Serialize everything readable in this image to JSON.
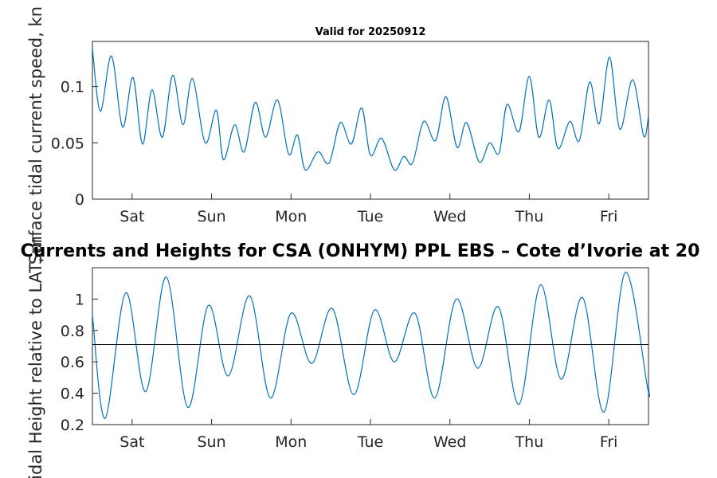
{
  "chart_data": [
    {
      "type": "line",
      "title": "Valid for 20250912",
      "ylabel": "Surface tidal current speed, kn",
      "xlim": [
        0,
        7
      ],
      "ylim": [
        0,
        0.14
      ],
      "x_ticks": [
        0.5,
        1.5,
        2.5,
        3.5,
        4.5,
        5.5,
        6.5
      ],
      "x_tick_labels": [
        "Sat",
        "Sun",
        "Mon",
        "Tue",
        "Wed",
        "Thu",
        "Fri"
      ],
      "y_ticks": [
        0,
        0.05,
        0.1
      ],
      "y_tick_labels": [
        "0",
        "0.05",
        "0.1"
      ],
      "grid": false,
      "series": [
        {
          "color": "#0072BD",
          "x": [
            0,
            0.1,
            0.24,
            0.38,
            0.51,
            0.63,
            0.75,
            0.88,
            1.01,
            1.14,
            1.26,
            1.42,
            1.56,
            1.65,
            1.79,
            1.91,
            2.05,
            2.18,
            2.33,
            2.47,
            2.58,
            2.68,
            2.84,
            2.98,
            3.12,
            3.26,
            3.39,
            3.5,
            3.64,
            3.8,
            3.92,
            4.03,
            4.17,
            4.32,
            4.45,
            4.59,
            4.71,
            4.87,
            5.0,
            5.12,
            5.22,
            5.37,
            5.5,
            5.62,
            5.75,
            5.86,
            6.01,
            6.13,
            6.26,
            6.38,
            6.51,
            6.64,
            6.8,
            6.94,
            7.0
          ],
          "y": [
            0.134,
            0.078,
            0.127,
            0.064,
            0.108,
            0.049,
            0.097,
            0.055,
            0.11,
            0.066,
            0.107,
            0.05,
            0.079,
            0.035,
            0.066,
            0.042,
            0.086,
            0.055,
            0.088,
            0.04,
            0.057,
            0.026,
            0.042,
            0.032,
            0.068,
            0.049,
            0.081,
            0.039,
            0.054,
            0.026,
            0.038,
            0.032,
            0.069,
            0.052,
            0.091,
            0.046,
            0.068,
            0.033,
            0.05,
            0.041,
            0.084,
            0.06,
            0.109,
            0.055,
            0.088,
            0.045,
            0.069,
            0.052,
            0.104,
            0.067,
            0.126,
            0.062,
            0.106,
            0.056,
            0.074
          ]
        }
      ]
    },
    {
      "type": "line",
      "title": "Currents and Heights for CSA (ONHYM) PPL EBS  – Cote d’Ivorie at 20",
      "ylabel": "Tidal Height relative to LAT, m",
      "xlim": [
        0,
        7
      ],
      "ylim": [
        0.2,
        1.2
      ],
      "x_ticks": [
        0.5,
        1.5,
        2.5,
        3.5,
        4.5,
        5.5,
        6.5
      ],
      "x_tick_labels": [
        "Sat",
        "Sun",
        "Mon",
        "Tue",
        "Wed",
        "Thu",
        "Fri"
      ],
      "y_ticks": [
        0.2,
        0.4,
        0.6,
        0.8,
        1
      ],
      "y_tick_labels": [
        "0.2",
        "0.4",
        "0.6",
        "0.8",
        "1"
      ],
      "grid": false,
      "reference_line_y": 0.71,
      "series": [
        {
          "color": "#0072BD",
          "x": [
            0,
            0.16,
            0.42,
            0.67,
            0.93,
            1.2,
            1.46,
            1.71,
            1.98,
            2.24,
            2.5,
            2.76,
            3.02,
            3.29,
            3.55,
            3.8,
            4.06,
            4.31,
            4.58,
            4.85,
            5.11,
            5.37,
            5.64,
            5.9,
            6.17,
            6.44,
            6.71,
            6.99,
            7.0
          ],
          "y": [
            0.9,
            0.24,
            1.04,
            0.41,
            1.14,
            0.31,
            0.96,
            0.51,
            1.02,
            0.37,
            0.91,
            0.59,
            0.94,
            0.39,
            0.93,
            0.6,
            0.91,
            0.37,
            1.0,
            0.56,
            0.95,
            0.33,
            1.09,
            0.49,
            1.01,
            0.28,
            1.17,
            0.43,
            0.44
          ]
        }
      ]
    }
  ]
}
